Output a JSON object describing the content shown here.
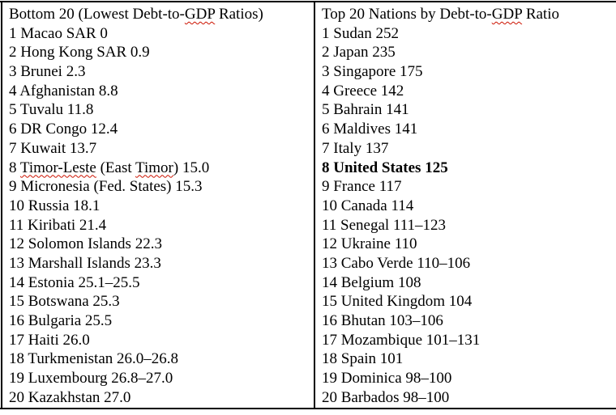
{
  "colors": {
    "text": "#000000",
    "border": "#000000",
    "spellcheck_underline": "#cc1100",
    "background": "#ffffff"
  },
  "columns": [
    {
      "name": "bottom-20",
      "header": {
        "text": "Bottom 20 (Lowest Debt-to-GDP Ratios)",
        "spell": [
          "GDP"
        ]
      },
      "rows": [
        {
          "text": "1 Macao SAR 0"
        },
        {
          "text": "2 Hong Kong SAR 0.9"
        },
        {
          "text": "3 Brunei 2.3"
        },
        {
          "text": "4 Afghanistan 8.8"
        },
        {
          "text": "5 Tuvalu 11.8"
        },
        {
          "text": "6 DR Congo 12.4"
        },
        {
          "text": "7 Kuwait 13.7"
        },
        {
          "text": "8 Timor-Leste (East Timor) 15.0",
          "spell": [
            "Timor-Leste",
            "Timor"
          ]
        },
        {
          "text": "9 Micronesia (Fed. States) 15.3"
        },
        {
          "text": "10 Russia 18.1"
        },
        {
          "text": "11 Kiribati 21.4"
        },
        {
          "text": "12 Solomon Islands 22.3"
        },
        {
          "text": "13 Marshall Islands 23.3"
        },
        {
          "text": "14 Estonia 25.1–25.5"
        },
        {
          "text": "15 Botswana 25.3"
        },
        {
          "text": "16 Bulgaria 25.5"
        },
        {
          "text": "17 Haiti 26.0"
        },
        {
          "text": "18 Turkmenistan 26.0–26.8"
        },
        {
          "text": "19 Luxembourg 26.8–27.0"
        },
        {
          "text": "20 Kazakhstan 27.0"
        }
      ]
    },
    {
      "name": "top-20",
      "header": {
        "text": "Top 20 Nations by Debt-to-GDP Ratio",
        "spell": [
          "GDP"
        ]
      },
      "rows": [
        {
          "text": "1 Sudan 252"
        },
        {
          "text": "2 Japan 235"
        },
        {
          "text": "3 Singapore 175"
        },
        {
          "text": "4 Greece 142"
        },
        {
          "text": "5 Bahrain 141"
        },
        {
          "text": "6 Maldives 141"
        },
        {
          "text": "7 Italy 137"
        },
        {
          "text": "8 United States 125",
          "bold": true
        },
        {
          "text": "9 France 117"
        },
        {
          "text": "10 Canada 114"
        },
        {
          "text": "11 Senegal 111–123"
        },
        {
          "text": "12 Ukraine 110"
        },
        {
          "text": "13 Cabo Verde 110–106"
        },
        {
          "text": "14 Belgium 108"
        },
        {
          "text": "15 United Kingdom 104"
        },
        {
          "text": "16 Bhutan 103–106"
        },
        {
          "text": "17 Mozambique 101–131"
        },
        {
          "text": "18 Spain 101"
        },
        {
          "text": "19 Dominica 98–100"
        },
        {
          "text": "20 Barbados 98–100"
        }
      ]
    }
  ]
}
